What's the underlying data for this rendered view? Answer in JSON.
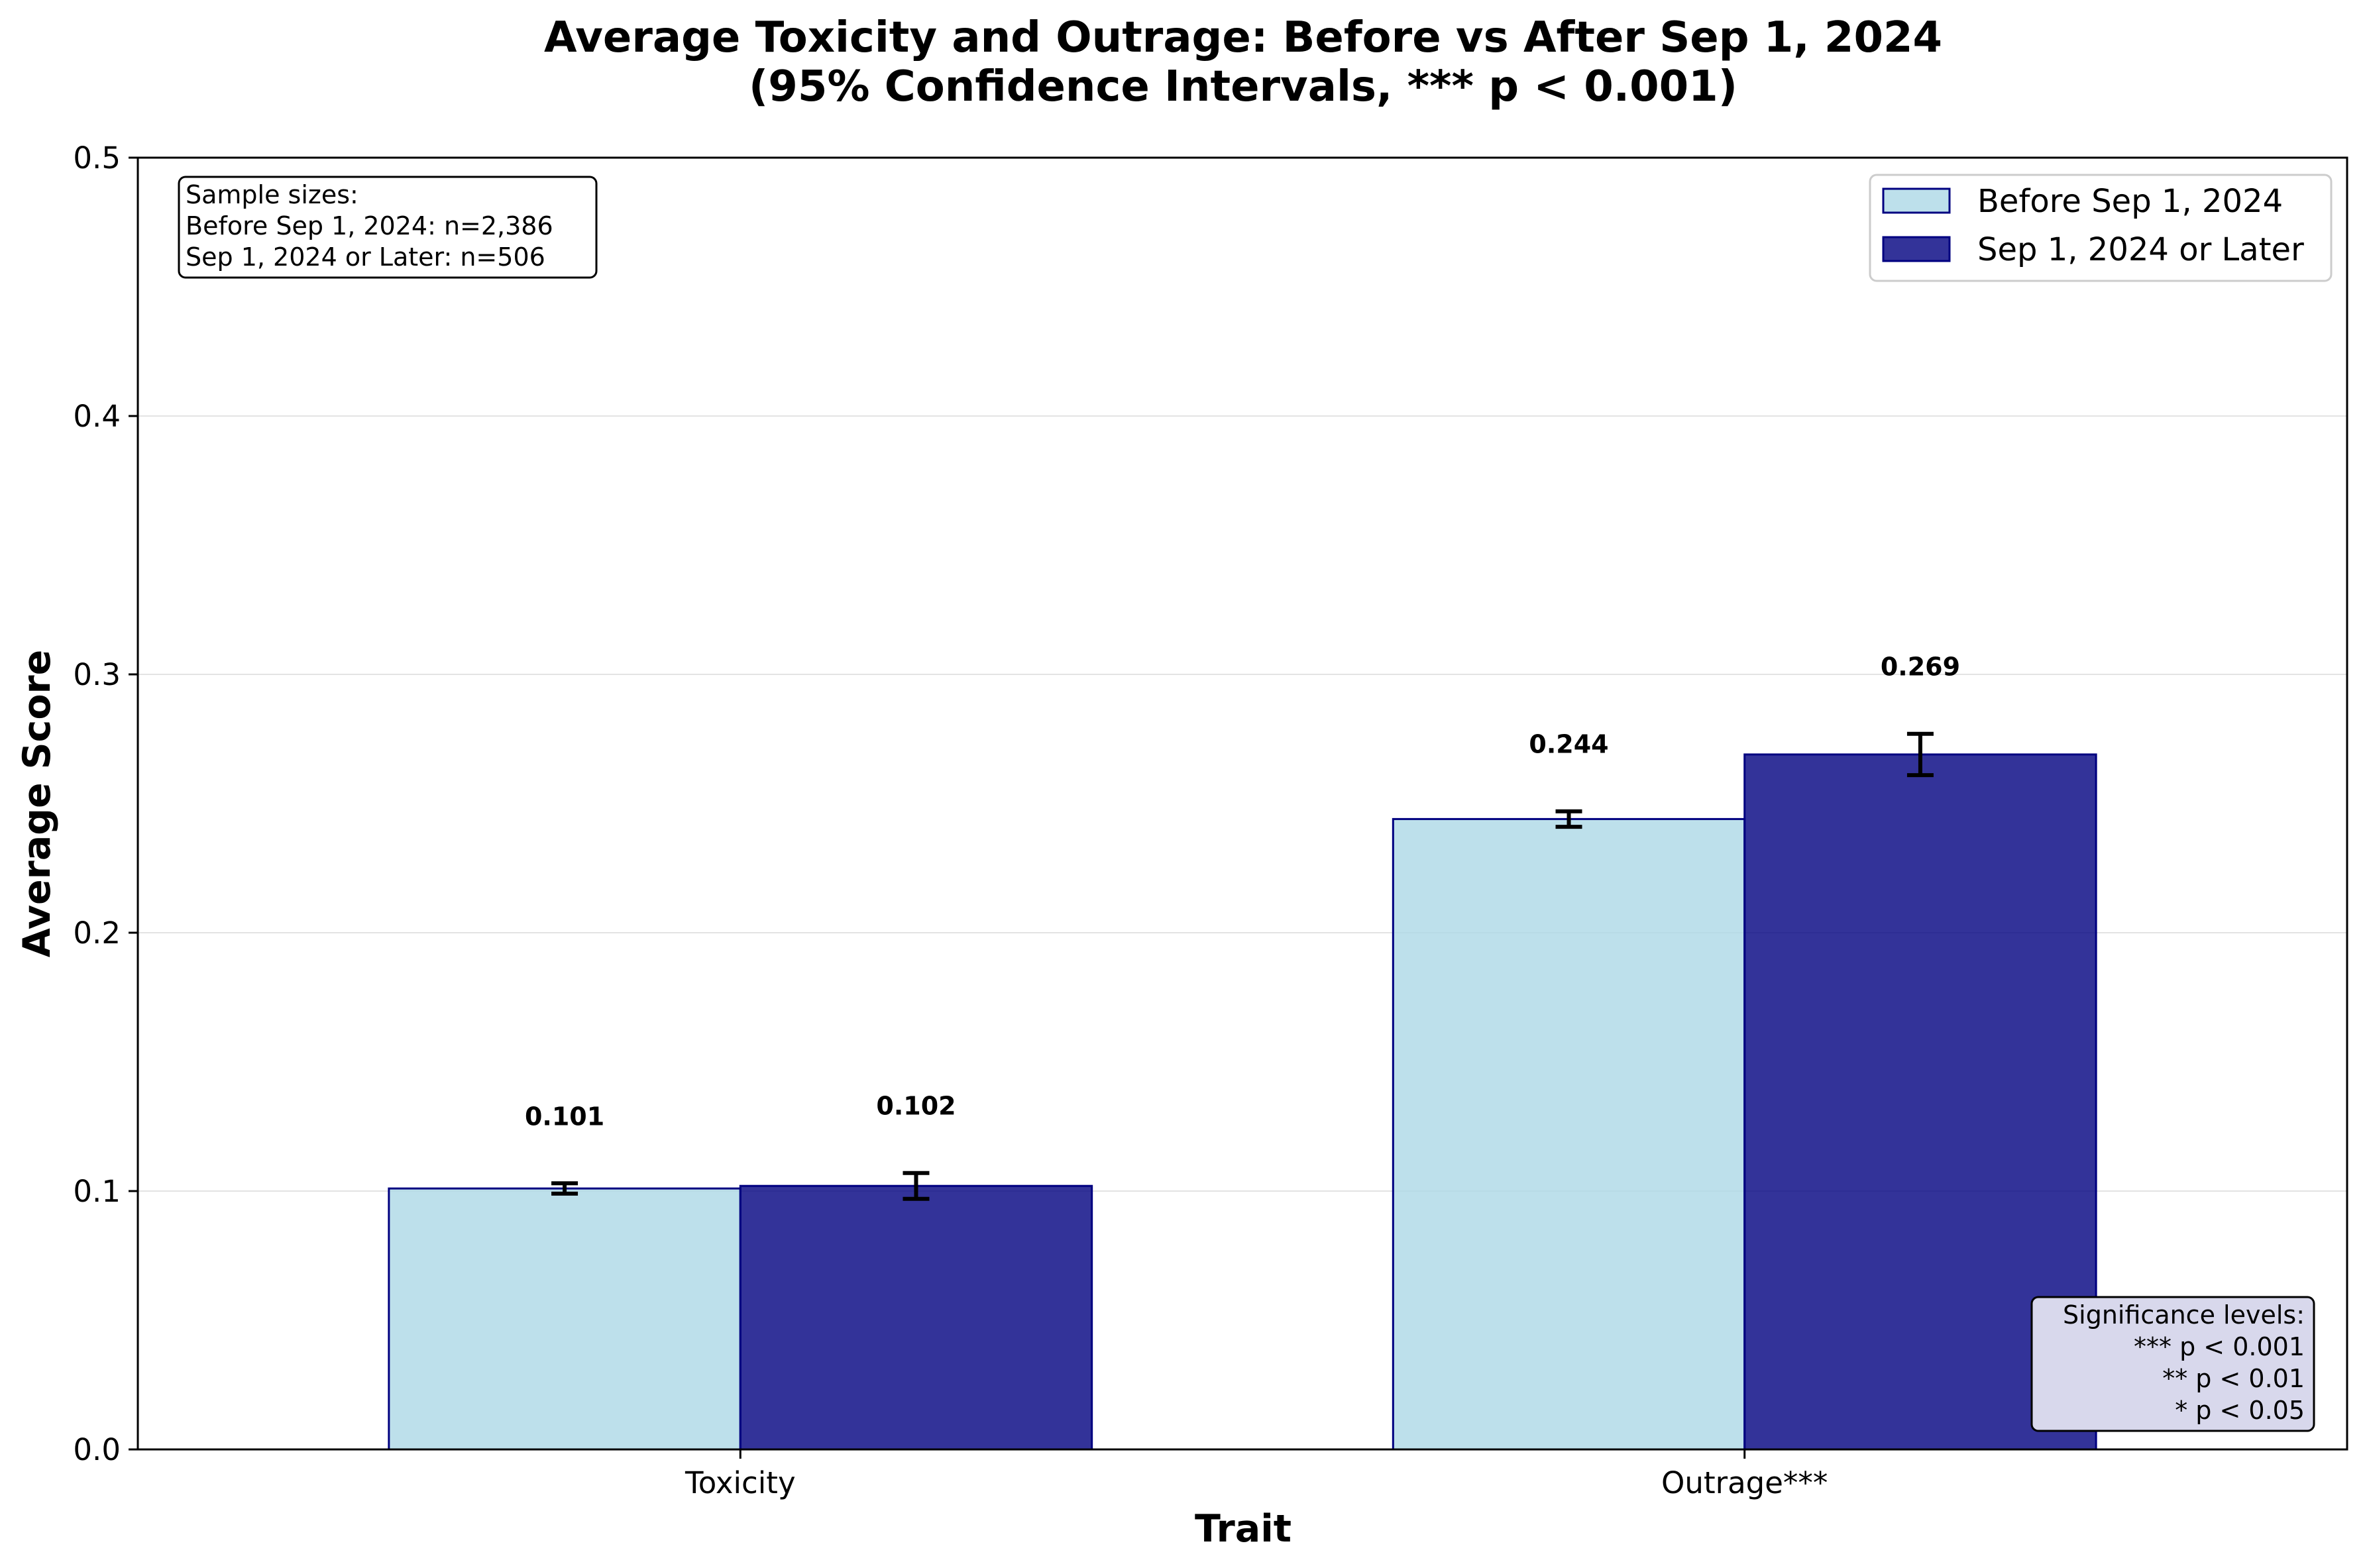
{
  "chart_data": {
    "type": "bar",
    "title": "Average Toxicity and Outrage: Before vs After Sep 1, 2024",
    "subtitle": "(95% Confidence Intervals, *** p < 0.001)",
    "xlabel": "Trait",
    "ylabel": "Average Score",
    "categories": [
      "Toxicity",
      "Outrage***"
    ],
    "ylim": [
      0,
      0.5
    ],
    "yticks": [
      "0.0",
      "0.1",
      "0.2",
      "0.3",
      "0.4",
      "0.5"
    ],
    "grid": "horizontal",
    "legend_position": "top-right",
    "series": [
      {
        "name": "Before Sep 1, 2024",
        "values": [
          0.101,
          0.244
        ],
        "ci": [
          [
            0.099,
            0.103
          ],
          [
            0.241,
            0.247
          ]
        ],
        "labels": [
          "0.101",
          "0.244"
        ],
        "color": "#add8e6",
        "edge_color": "#000080"
      },
      {
        "name": "Sep 1, 2024 or Later",
        "values": [
          0.102,
          0.269
        ],
        "ci": [
          [
            0.097,
            0.107
          ],
          [
            0.261,
            0.277
          ]
        ],
        "labels": [
          "0.102",
          "0.269"
        ],
        "color": "#000080",
        "edge_color": "#000080"
      }
    ],
    "sample_box": {
      "lines": [
        "Sample sizes:",
        "Before Sep 1, 2024: n=2,386",
        "Sep 1, 2024 or Later: n=506"
      ]
    },
    "significance_box": {
      "lines": [
        "Significance levels:",
        "*** p < 0.001",
        "** p < 0.01",
        "* p < 0.05"
      ],
      "background": "#d8d8ec"
    }
  }
}
